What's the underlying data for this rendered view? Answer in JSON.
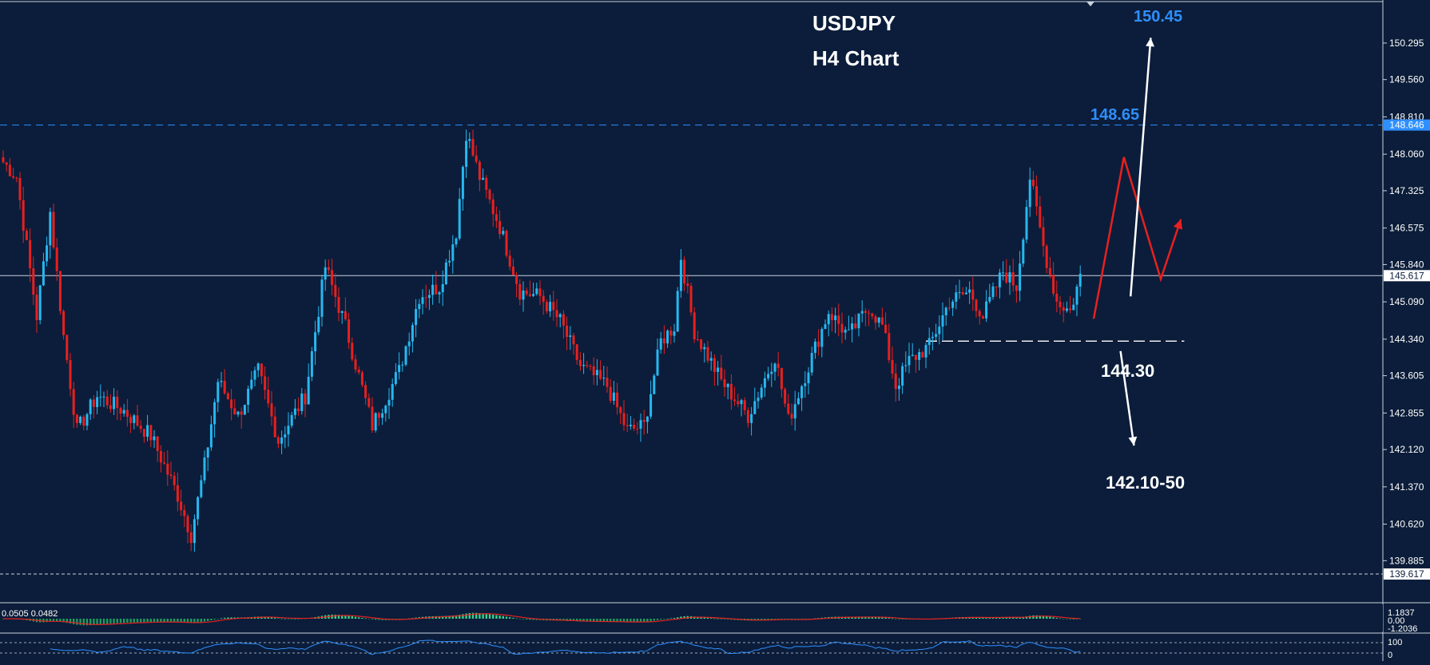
{
  "chart_data": {
    "type": "candlestick",
    "title": "USDJPY",
    "subtitle": "H4 Chart",
    "ylim": [
      139.2,
      151.0
    ],
    "y_ticks": [
      "150.295",
      "149.560",
      "148.810",
      "148.060",
      "147.325",
      "146.575",
      "145.840",
      "145.090",
      "144.340",
      "143.605",
      "142.855",
      "142.120",
      "141.370",
      "140.620",
      "139.885"
    ],
    "price_labels": {
      "resistance": "148.646",
      "current": "145.617",
      "bottom": "139.617"
    },
    "price_levels": {
      "resistance": 148.646,
      "current": 145.617,
      "bottom": 139.617,
      "support": 144.3
    },
    "annotations": {
      "target_up": "150.45",
      "resistance_label": "148.65",
      "support_label": "144.30",
      "target_down": "142.10-50"
    },
    "candle_anchors": [
      {
        "i": 0,
        "p": 147.9
      },
      {
        "i": 4,
        "p": 147.6
      },
      {
        "i": 10,
        "p": 144.8
      },
      {
        "i": 14,
        "p": 146.9
      },
      {
        "i": 18,
        "p": 144.4
      },
      {
        "i": 22,
        "p": 142.5
      },
      {
        "i": 28,
        "p": 143.2
      },
      {
        "i": 36,
        "p": 142.9
      },
      {
        "i": 44,
        "p": 142.4
      },
      {
        "i": 52,
        "p": 141.2
      },
      {
        "i": 56,
        "p": 140.4
      },
      {
        "i": 60,
        "p": 141.8
      },
      {
        "i": 64,
        "p": 143.5
      },
      {
        "i": 70,
        "p": 142.8
      },
      {
        "i": 76,
        "p": 143.7
      },
      {
        "i": 82,
        "p": 142.3
      },
      {
        "i": 90,
        "p": 143.2
      },
      {
        "i": 96,
        "p": 145.8
      },
      {
        "i": 102,
        "p": 144.6
      },
      {
        "i": 110,
        "p": 142.6
      },
      {
        "i": 118,
        "p": 143.7
      },
      {
        "i": 124,
        "p": 145.2
      },
      {
        "i": 130,
        "p": 145.4
      },
      {
        "i": 135,
        "p": 146.5
      },
      {
        "i": 138,
        "p": 148.5
      },
      {
        "i": 142,
        "p": 147.6
      },
      {
        "i": 148,
        "p": 146.6
      },
      {
        "i": 154,
        "p": 145.3
      },
      {
        "i": 160,
        "p": 145.2
      },
      {
        "i": 166,
        "p": 144.7
      },
      {
        "i": 172,
        "p": 143.8
      },
      {
        "i": 180,
        "p": 143.4
      },
      {
        "i": 186,
        "p": 142.5
      },
      {
        "i": 191,
        "p": 142.6
      },
      {
        "i": 196,
        "p": 144.3
      },
      {
        "i": 200,
        "p": 144.6
      },
      {
        "i": 202,
        "p": 146.0
      },
      {
        "i": 206,
        "p": 144.5
      },
      {
        "i": 214,
        "p": 143.5
      },
      {
        "i": 222,
        "p": 142.8
      },
      {
        "i": 230,
        "p": 144.0
      },
      {
        "i": 234,
        "p": 142.7
      },
      {
        "i": 240,
        "p": 143.8
      },
      {
        "i": 246,
        "p": 144.9
      },
      {
        "i": 252,
        "p": 144.4
      },
      {
        "i": 258,
        "p": 145.0
      },
      {
        "i": 262,
        "p": 144.6
      },
      {
        "i": 266,
        "p": 143.4
      },
      {
        "i": 270,
        "p": 143.9
      },
      {
        "i": 276,
        "p": 144.2
      },
      {
        "i": 282,
        "p": 145.1
      },
      {
        "i": 288,
        "p": 145.3
      },
      {
        "i": 292,
        "p": 144.8
      },
      {
        "i": 298,
        "p": 145.7
      },
      {
        "i": 302,
        "p": 145.4
      },
      {
        "i": 306,
        "p": 147.6
      },
      {
        "i": 310,
        "p": 146.2
      },
      {
        "i": 314,
        "p": 145.1
      },
      {
        "i": 318,
        "p": 144.9
      },
      {
        "i": 321,
        "p": 145.6
      }
    ],
    "forecast_path": [
      {
        "i": 325,
        "p": 144.75
      },
      {
        "i": 334,
        "p": 148.0
      },
      {
        "i": 345,
        "p": 145.55
      },
      {
        "i": 351,
        "p": 146.75
      }
    ],
    "arrows": {
      "up": [
        {
          "i": 336,
          "p": 145.2
        },
        {
          "i": 342,
          "p": 150.4
        }
      ],
      "down": [
        {
          "i": 333,
          "p": 144.1
        },
        {
          "i": 337,
          "p": 142.2
        }
      ]
    },
    "indicator": {
      "macd_label": "0.0505 0.0482",
      "ticks": [
        "1.1837",
        "0.00",
        "-1.2036"
      ],
      "rsi_ticks": [
        "100",
        "0"
      ]
    }
  }
}
